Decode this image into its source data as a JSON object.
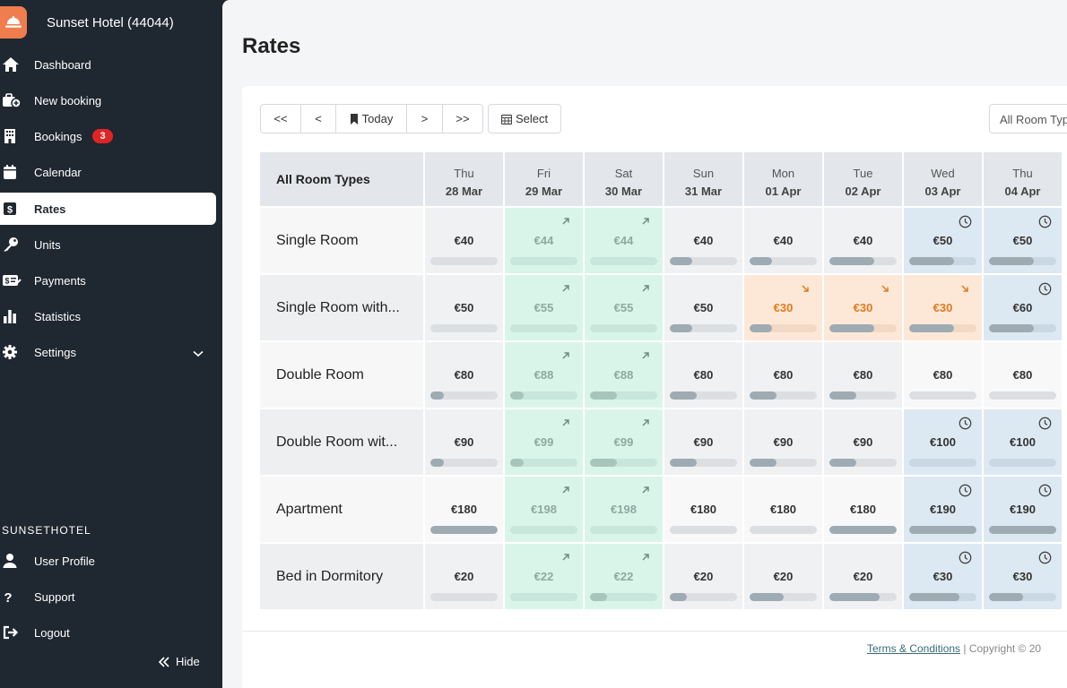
{
  "brand": {
    "title": "Sunset Hotel (44044)",
    "logo_icon": "bell-icon",
    "accent": "#ef7d4d"
  },
  "nav": {
    "items": [
      {
        "label": "Dashboard",
        "icon": "home-icon"
      },
      {
        "label": "New booking",
        "icon": "new-booking-icon"
      },
      {
        "label": "Bookings",
        "icon": "building-icon",
        "badge": "3"
      },
      {
        "label": "Calendar",
        "icon": "calendar-icon"
      },
      {
        "label": "Rates",
        "icon": "dollar-icon",
        "active": true
      },
      {
        "label": "Units",
        "icon": "key-icon"
      },
      {
        "label": "Payments",
        "icon": "payments-icon"
      },
      {
        "label": "Statistics",
        "icon": "bar-chart-icon"
      },
      {
        "label": "Settings",
        "icon": "gear-icon",
        "expandable": true
      }
    ],
    "section_label": "SUNSETHOTEL",
    "account_items": [
      {
        "label": "User Profile",
        "icon": "user-icon"
      },
      {
        "label": "Support",
        "icon": "question-icon"
      },
      {
        "label": "Logout",
        "icon": "logout-icon"
      }
    ],
    "hide_label": "Hide"
  },
  "page": {
    "title": "Rates"
  },
  "toolbar": {
    "first_label": "<<",
    "prev_label": "<",
    "today_label": "Today",
    "next_label": ">",
    "last_label": ">>",
    "select_label": "Select",
    "room_type_select": "All Room Types"
  },
  "grid": {
    "header_label": "All Room Types",
    "days": [
      {
        "dow": "Thu",
        "date": "28 Mar"
      },
      {
        "dow": "Fri",
        "date": "29 Mar"
      },
      {
        "dow": "Sat",
        "date": "30 Mar"
      },
      {
        "dow": "Sun",
        "date": "31 Mar"
      },
      {
        "dow": "Mon",
        "date": "01 Apr"
      },
      {
        "dow": "Tue",
        "date": "02 Apr"
      },
      {
        "dow": "Wed",
        "date": "03 Apr"
      },
      {
        "dow": "Thu",
        "date": "04 Apr"
      }
    ],
    "rooms": [
      {
        "name": "Single Room",
        "rates": [
          {
            "price": "€40",
            "state": "normal",
            "occupancy": 0
          },
          {
            "price": "€44",
            "state": "up",
            "occupancy": 0
          },
          {
            "price": "€44",
            "state": "up",
            "occupancy": 0
          },
          {
            "price": "€40",
            "state": "normal",
            "occupancy": 0.33
          },
          {
            "price": "€40",
            "state": "normal",
            "occupancy": 0.33
          },
          {
            "price": "€40",
            "state": "normal",
            "occupancy": 0.66
          },
          {
            "price": "€50",
            "state": "scheduled",
            "occupancy": 0.66
          },
          {
            "price": "€50",
            "state": "scheduled",
            "occupancy": 0.66
          }
        ]
      },
      {
        "name": "Single Room with...",
        "rates": [
          {
            "price": "€50",
            "state": "normal",
            "occupancy": 0
          },
          {
            "price": "€55",
            "state": "up",
            "occupancy": 0
          },
          {
            "price": "€55",
            "state": "up",
            "occupancy": 0
          },
          {
            "price": "€50",
            "state": "normal",
            "occupancy": 0.33
          },
          {
            "price": "€30",
            "state": "down",
            "occupancy": 0.33
          },
          {
            "price": "€30",
            "state": "down",
            "occupancy": 0.66
          },
          {
            "price": "€30",
            "state": "down",
            "occupancy": 0.66
          },
          {
            "price": "€60",
            "state": "scheduled",
            "occupancy": 0.66
          }
        ]
      },
      {
        "name": "Double Room",
        "rates": [
          {
            "price": "€80",
            "state": "normal",
            "occupancy": 0.2
          },
          {
            "price": "€88",
            "state": "up",
            "occupancy": 0.2
          },
          {
            "price": "€88",
            "state": "up",
            "occupancy": 0.4
          },
          {
            "price": "€80",
            "state": "normal",
            "occupancy": 0.4
          },
          {
            "price": "€80",
            "state": "normal",
            "occupancy": 0.4
          },
          {
            "price": "€80",
            "state": "normal",
            "occupancy": 0.4
          },
          {
            "price": "€80",
            "state": "plain",
            "occupancy": 0
          },
          {
            "price": "€80",
            "state": "plain",
            "occupancy": 0
          }
        ]
      },
      {
        "name": "Double Room wit...",
        "rates": [
          {
            "price": "€90",
            "state": "normal",
            "occupancy": 0.2
          },
          {
            "price": "€99",
            "state": "up",
            "occupancy": 0.2
          },
          {
            "price": "€99",
            "state": "up",
            "occupancy": 0.4
          },
          {
            "price": "€90",
            "state": "normal",
            "occupancy": 0.4
          },
          {
            "price": "€90",
            "state": "normal",
            "occupancy": 0.4
          },
          {
            "price": "€90",
            "state": "normal",
            "occupancy": 0.4
          },
          {
            "price": "€100",
            "state": "scheduled",
            "occupancy": 0
          },
          {
            "price": "€100",
            "state": "scheduled",
            "occupancy": 0
          }
        ]
      },
      {
        "name": "Apartment",
        "rates": [
          {
            "price": "€180",
            "state": "plain",
            "occupancy": 1
          },
          {
            "price": "€198",
            "state": "up",
            "occupancy": 0
          },
          {
            "price": "€198",
            "state": "up",
            "occupancy": 0
          },
          {
            "price": "€180",
            "state": "plain",
            "occupancy": 0
          },
          {
            "price": "€180",
            "state": "plain",
            "occupancy": 0
          },
          {
            "price": "€180",
            "state": "plain",
            "occupancy": 1
          },
          {
            "price": "€190",
            "state": "scheduled",
            "occupancy": 1
          },
          {
            "price": "€190",
            "state": "scheduled",
            "occupancy": 1
          }
        ]
      },
      {
        "name": "Bed in Dormitory",
        "rates": [
          {
            "price": "€20",
            "state": "normal",
            "occupancy": 0
          },
          {
            "price": "€22",
            "state": "up",
            "occupancy": 0
          },
          {
            "price": "€22",
            "state": "up",
            "occupancy": 0.25
          },
          {
            "price": "€20",
            "state": "normal",
            "occupancy": 0.25
          },
          {
            "price": "€20",
            "state": "normal",
            "occupancy": 0.5
          },
          {
            "price": "€20",
            "state": "normal",
            "occupancy": 0.75
          },
          {
            "price": "€30",
            "state": "scheduled",
            "occupancy": 0.75
          },
          {
            "price": "€30",
            "state": "scheduled",
            "occupancy": 0.5
          }
        ]
      }
    ]
  },
  "footer": {
    "link": "Terms & Conditions",
    "text": "| Copyright © 20"
  },
  "colors": {
    "up_bg": "#d9f5ea",
    "up_text": "#8fa8a0",
    "down_bg": "#fde8d8",
    "down_text": "#e07a1f",
    "scheduled_bg": "#dde9f2",
    "normal_bg": "#f0f1f2",
    "plain_bg": "#f8f8f9"
  }
}
